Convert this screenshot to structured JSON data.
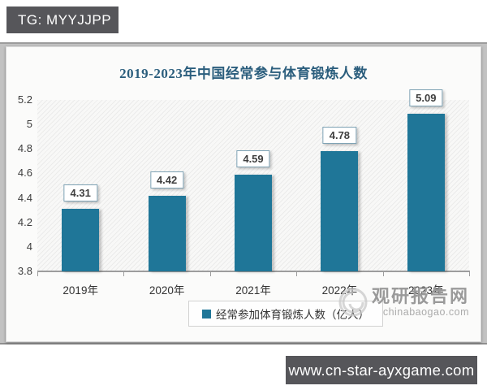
{
  "badges": {
    "tg_label": "TG: MYYJJPP",
    "url_label": "www.cn-star-ayxgame.com"
  },
  "watermark": {
    "name": "观研报告网",
    "site": "chinabaogao.com"
  },
  "chart_data": {
    "type": "bar",
    "title": "2019-2023年中国经常参与体育锻炼人数",
    "categories": [
      "2019年",
      "2020年",
      "2021年",
      "2022年",
      "2023年"
    ],
    "values": [
      4.31,
      4.42,
      4.59,
      4.78,
      5.09
    ],
    "legend": "经常参加体育锻炼人数（亿人）",
    "xlabel": "",
    "ylabel": "",
    "ylim": [
      3.8,
      5.2
    ],
    "ytick_step": 0.2,
    "bar_color": "#1f7698",
    "grid": false,
    "legend_position": "bottom",
    "plot_background": "diagonal-hatch"
  }
}
